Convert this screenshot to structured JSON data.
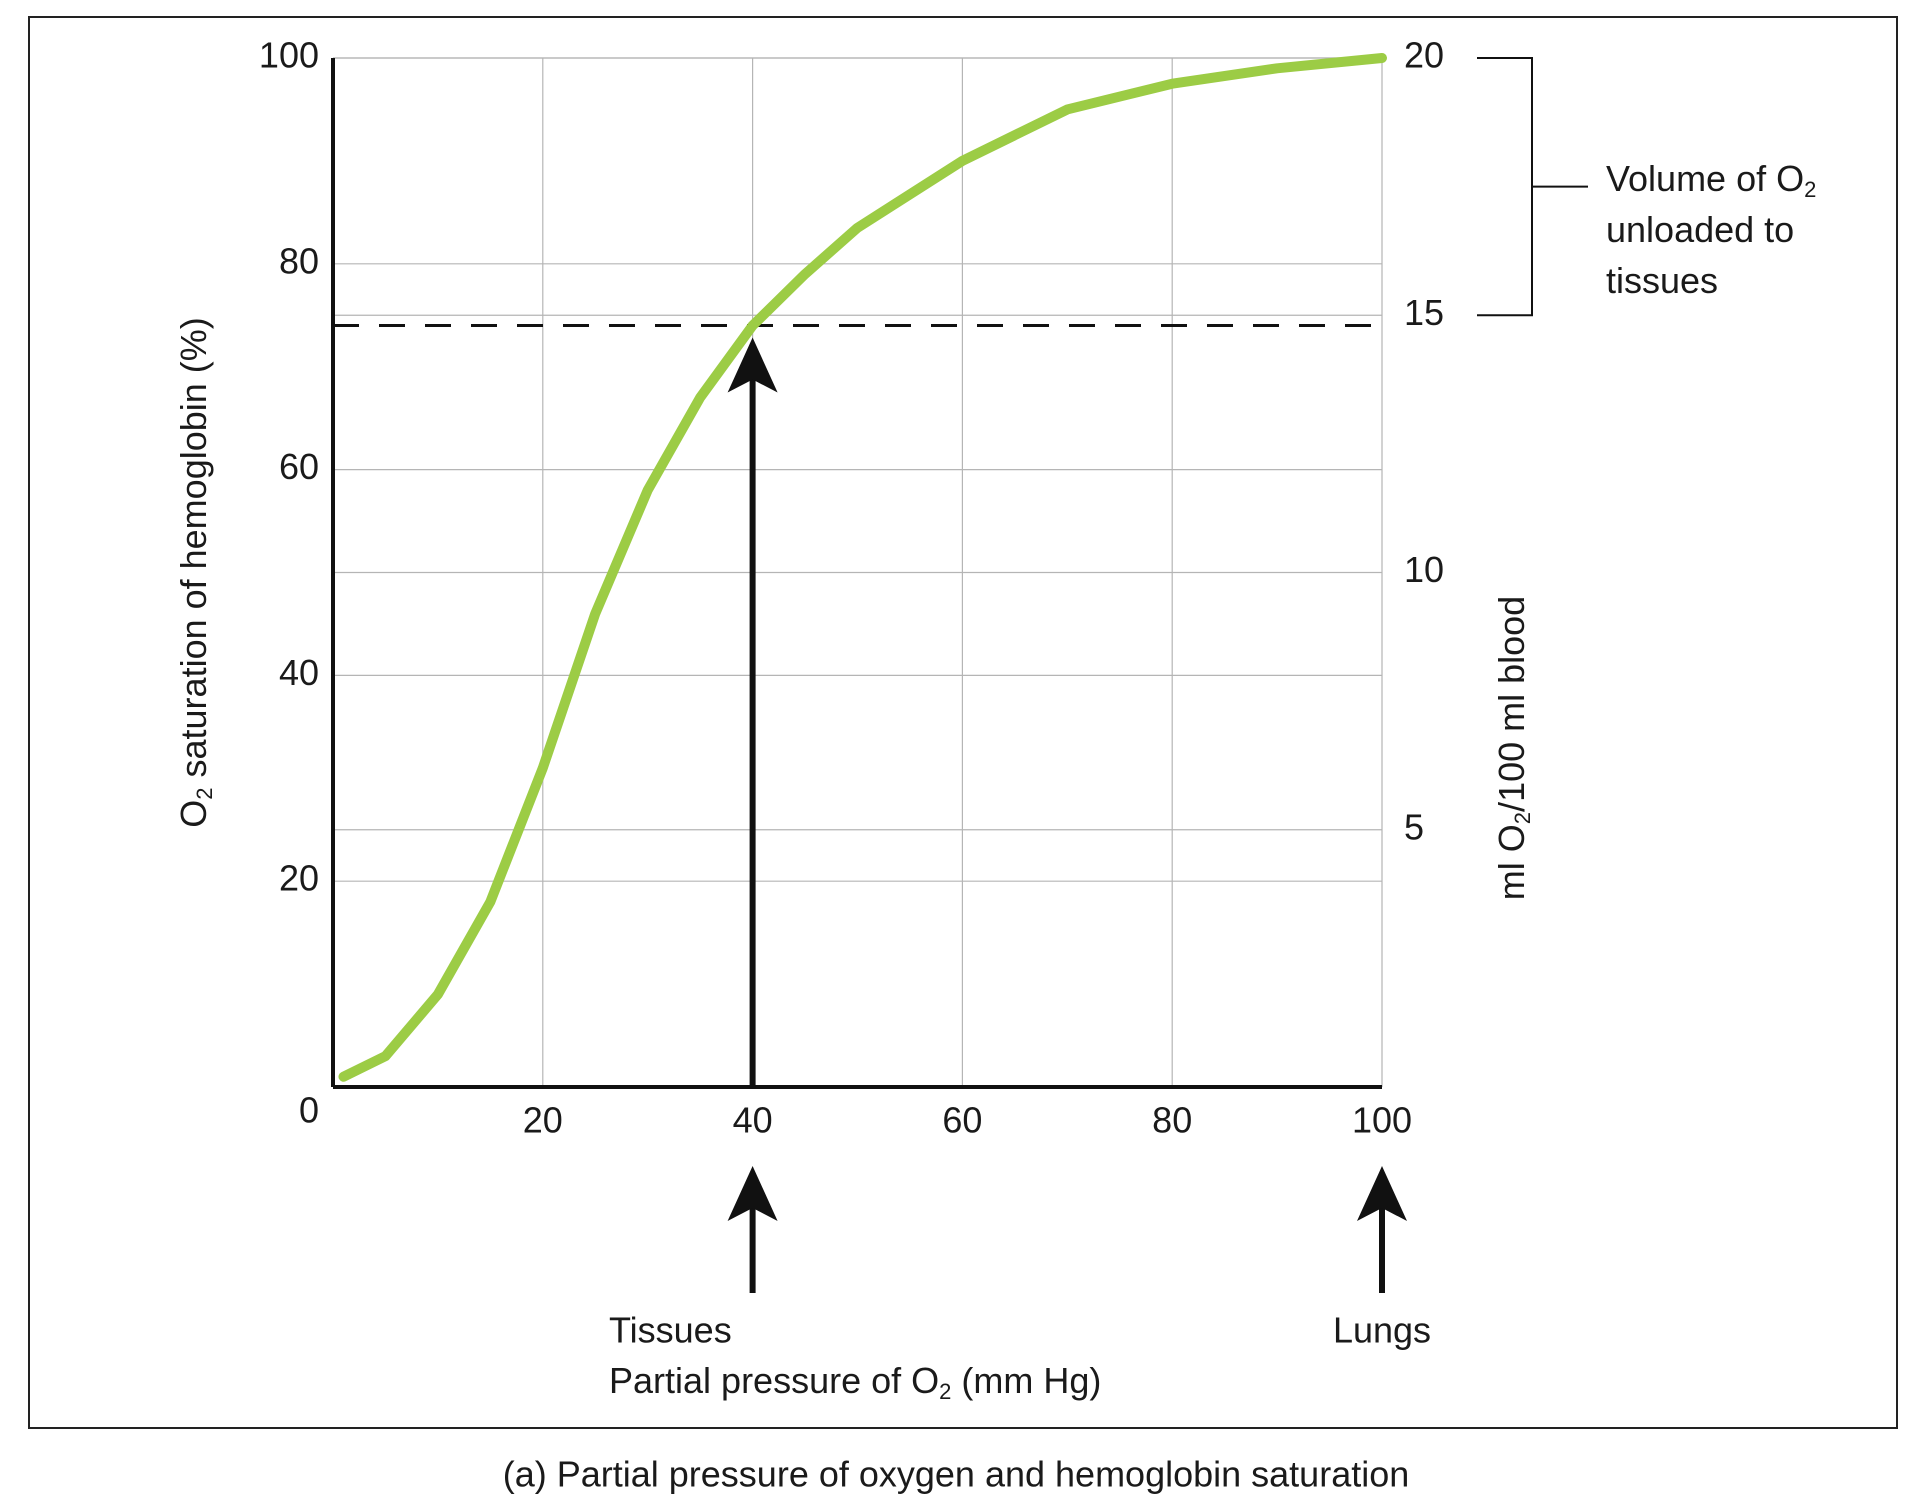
{
  "chart_data": {
    "type": "line",
    "caption": "(a) Partial pressure of oxygen and hemoglobin saturation",
    "ylabel": [
      "O",
      "2",
      " saturation of hemoglobin (%)"
    ],
    "y2label": [
      "ml O",
      "2",
      "/100 ml blood"
    ],
    "xlabel": [
      "Partial pressure of O",
      "2",
      " (mm Hg)"
    ],
    "x": [
      1,
      5,
      10,
      15,
      20,
      25,
      30,
      35,
      40,
      45,
      50,
      60,
      70,
      80,
      90,
      100
    ],
    "series": [
      {
        "name": "Hemoglobin saturation",
        "color": "#9ccc45",
        "values": [
          1,
          3,
          9,
          18,
          31,
          46,
          58,
          67,
          74,
          79,
          83.5,
          90,
          95,
          97.5,
          99,
          100
        ]
      }
    ],
    "xlim": [
      0,
      100
    ],
    "xticks": [
      20,
      40,
      60,
      80,
      100
    ],
    "ylim": [
      0,
      100
    ],
    "yticks": [
      0,
      20,
      40,
      60,
      80,
      100
    ],
    "y2lim": [
      0,
      20
    ],
    "y2ticks": [
      5,
      10,
      15,
      20
    ],
    "grid": true,
    "reference_line": 74,
    "markers": [
      {
        "x": 40,
        "label": "Tissues"
      },
      {
        "x": 100,
        "label": "Lungs"
      }
    ],
    "bracket": {
      "y2range": [
        15,
        20
      ],
      "label_lines": [
        [
          "Volume of O",
          "2"
        ],
        [
          "unloaded to"
        ],
        [
          "tissues"
        ]
      ]
    }
  }
}
